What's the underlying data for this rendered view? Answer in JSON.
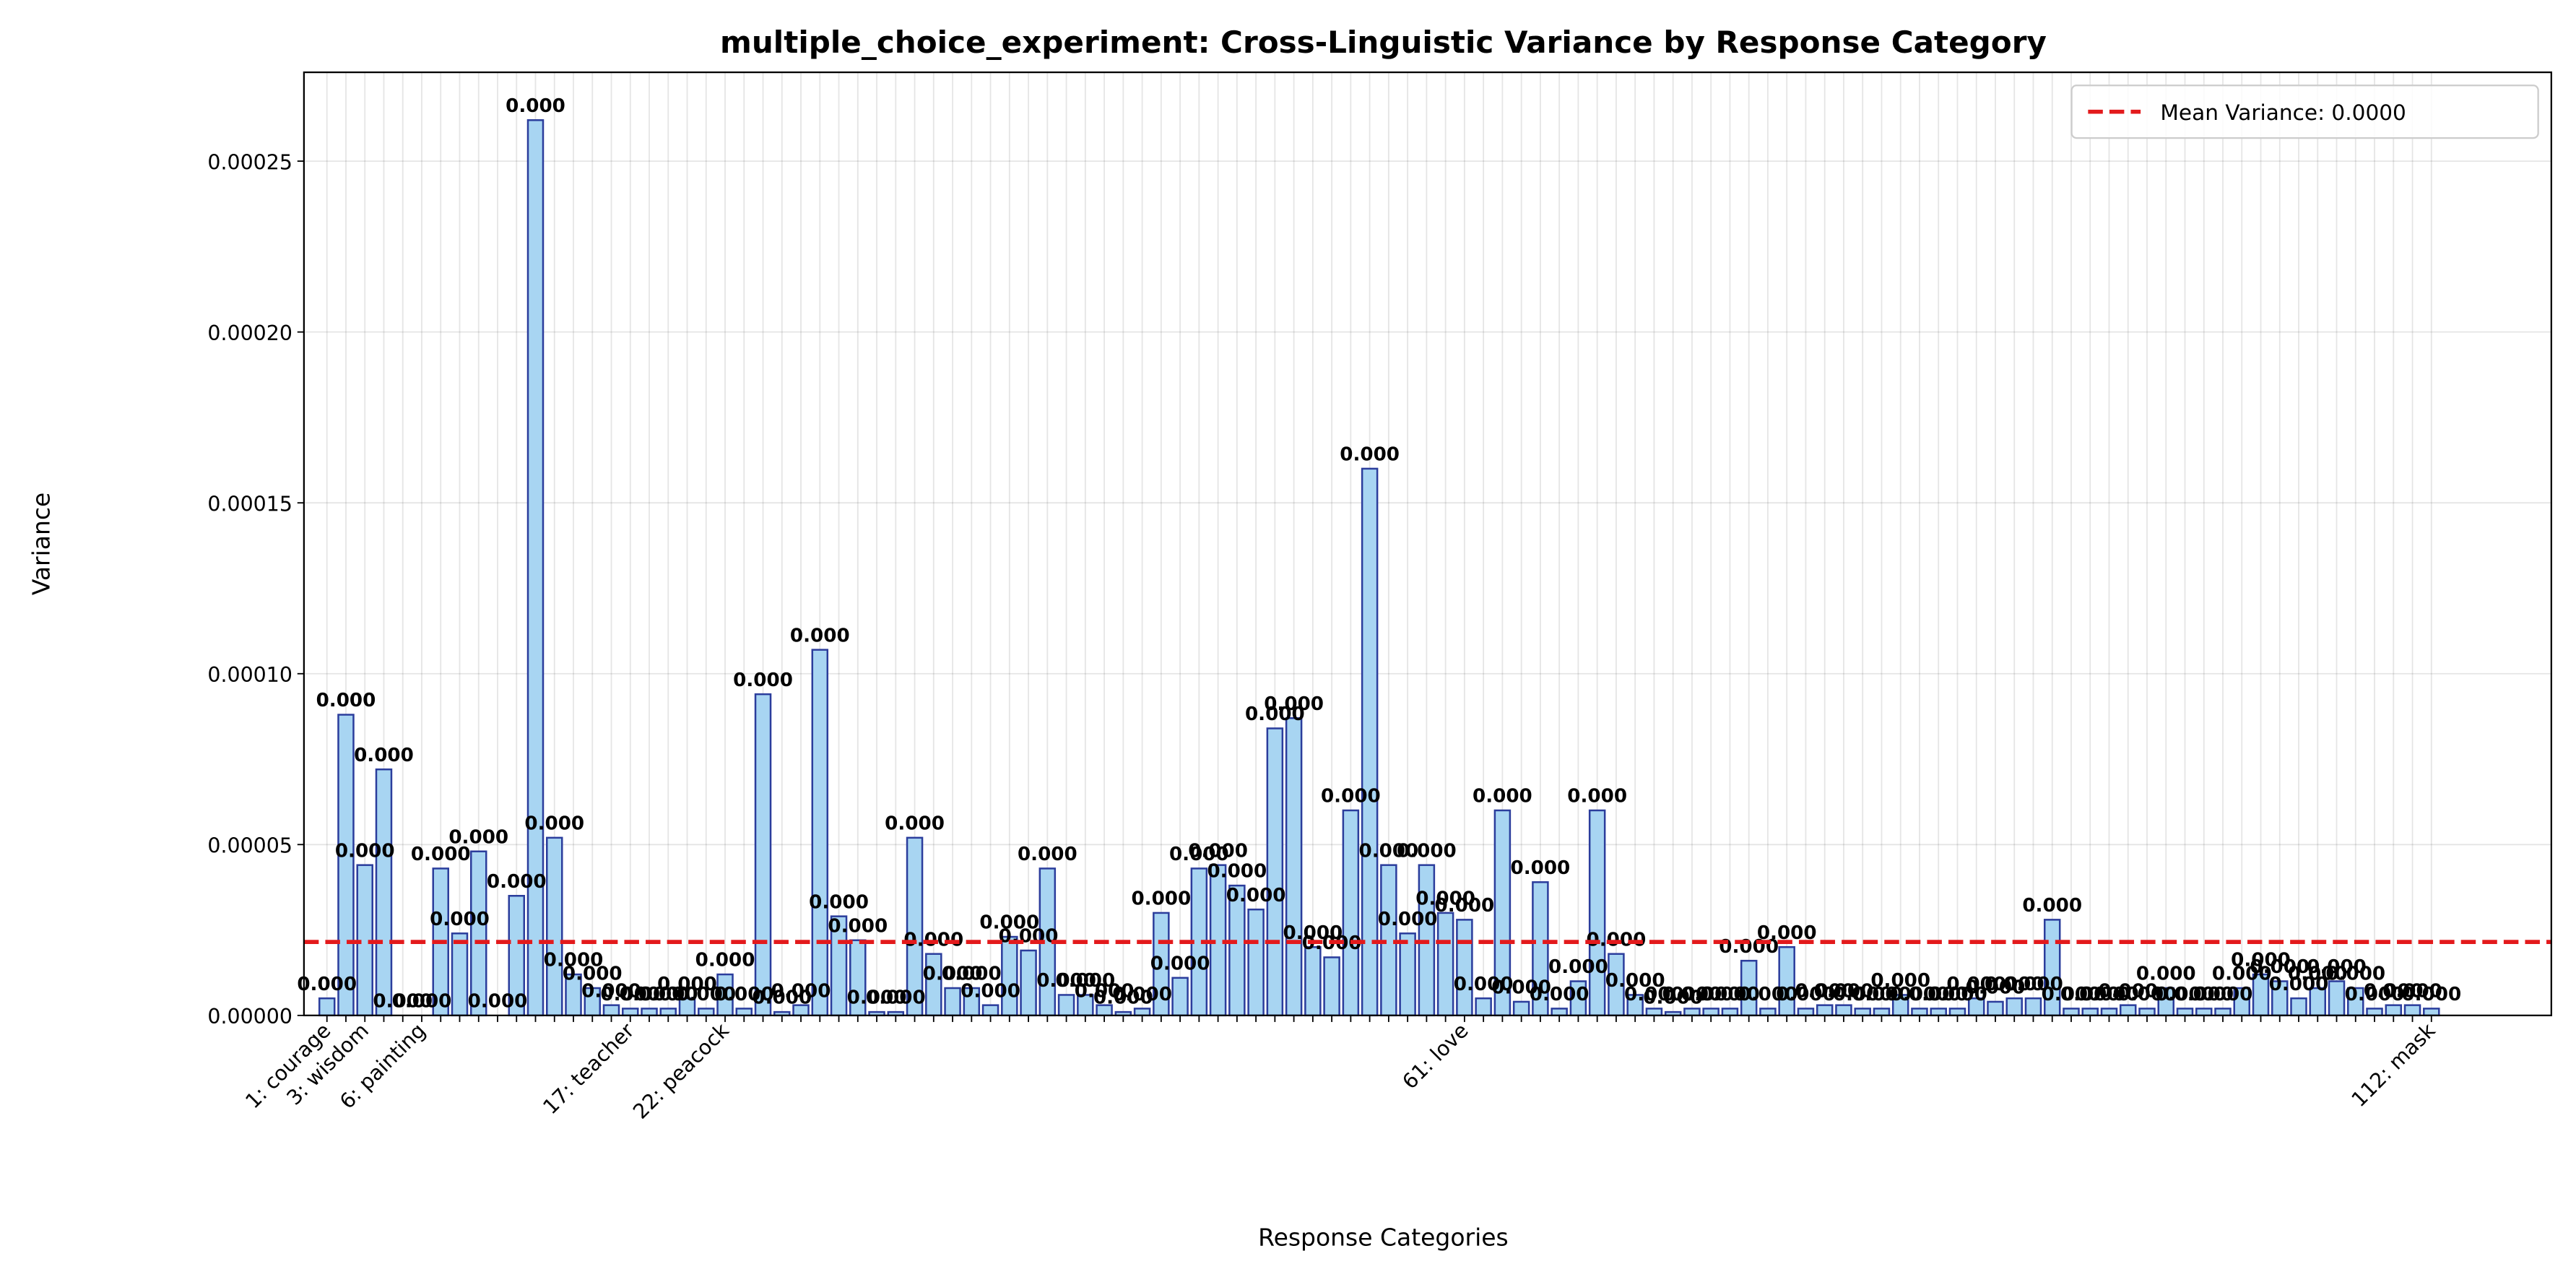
{
  "chart_data": {
    "type": "bar",
    "title": "multiple_choice_experiment: Cross-Linguistic Variance by Response Category",
    "xlabel": "Response Categories",
    "ylabel": "Variance",
    "color": "#a8d5f2",
    "edgecolor": "#2b3d9c",
    "grid": true,
    "legend": "upper right",
    "mean_line": {
      "value": 2.15e-05,
      "label": "Mean Variance: 0.0000",
      "color": "#e31a1c"
    },
    "ylim": [
      0,
      0.000276
    ],
    "yticks": [
      {
        "value": 0,
        "label": "0.00000"
      },
      {
        "value": 5e-05,
        "label": "0.00005"
      },
      {
        "value": 0.0001,
        "label": "0.00010"
      },
      {
        "value": 0.00015,
        "label": "0.00015"
      },
      {
        "value": 0.0002,
        "label": "0.00020"
      },
      {
        "value": 0.00025,
        "label": "0.00025"
      }
    ],
    "categories": [
      "1: courage",
      null,
      "3: wisdom",
      null,
      null,
      "6: painting",
      null,
      null,
      null,
      null,
      null,
      null,
      null,
      null,
      null,
      null,
      "17: teacher",
      null,
      null,
      null,
      null,
      "22: peacock",
      null,
      null,
      null,
      null,
      null,
      null,
      null,
      null,
      null,
      null,
      null,
      null,
      null,
      null,
      null,
      null,
      null,
      null,
      null,
      null,
      null,
      null,
      null,
      null,
      null,
      null,
      null,
      null,
      null,
      null,
      null,
      null,
      null,
      null,
      null,
      null,
      null,
      null,
      "61: love",
      null,
      null,
      null,
      null,
      null,
      null,
      null,
      null,
      null,
      null,
      null,
      null,
      null,
      null,
      null,
      null,
      null,
      null,
      null,
      null,
      null,
      null,
      null,
      null,
      null,
      null,
      null,
      null,
      null,
      null,
      null,
      null,
      null,
      null,
      null,
      null,
      null,
      null,
      null,
      null,
      null,
      null,
      null,
      null,
      null,
      null,
      null,
      null,
      null,
      null,
      "112: mask"
    ],
    "values": [
      5e-06,
      8.8e-05,
      4.4e-05,
      7.2e-05,
      0,
      0,
      4.3e-05,
      2.4e-05,
      4.8e-05,
      0,
      3.5e-05,
      0.000262,
      5.2e-05,
      1.2e-05,
      8e-06,
      3e-06,
      2e-06,
      2e-06,
      2e-06,
      5e-06,
      2e-06,
      1.2e-05,
      2e-06,
      9.4e-05,
      1e-06,
      3e-06,
      0.000107,
      2.9e-05,
      2.2e-05,
      1e-06,
      1e-06,
      5.2e-05,
      1.8e-05,
      8e-06,
      8e-06,
      3e-06,
      2.3e-05,
      1.9e-05,
      4.3e-05,
      6e-06,
      6e-06,
      3e-06,
      1e-06,
      2e-06,
      3e-05,
      1.1e-05,
      4.3e-05,
      4.4e-05,
      3.8e-05,
      3.1e-05,
      8.4e-05,
      8.7e-05,
      2e-05,
      1.7e-05,
      6e-05,
      0.00016,
      4.4e-05,
      2.4e-05,
      4.4e-05,
      3e-05,
      2.8e-05,
      5e-06,
      6e-05,
      4e-06,
      3.9e-05,
      2e-06,
      1e-05,
      6e-05,
      1.8e-05,
      6e-06,
      2e-06,
      1e-06,
      2e-06,
      2e-06,
      2e-06,
      1.6e-05,
      2e-06,
      2e-05,
      2e-06,
      3e-06,
      3e-06,
      2e-06,
      2e-06,
      6e-06,
      2e-06,
      2e-06,
      2e-06,
      5e-06,
      4e-06,
      5e-06,
      5e-06,
      2.8e-05,
      2e-06,
      2e-06,
      2e-06,
      3e-06,
      2e-06,
      8e-06,
      2e-06,
      2e-06,
      2e-06,
      8e-06,
      1.2e-05,
      1e-05,
      5e-06,
      8e-06,
      1e-05,
      8e-06,
      2e-06,
      3e-06,
      3e-06,
      2e-06
    ],
    "value_labels": [
      "0.000",
      "0.000",
      "0.000",
      "0.000",
      "0.000",
      "0.000",
      "0.000",
      "0.000",
      "0.000",
      "0.000",
      "0.000",
      "0.000",
      "0.000",
      "0.000",
      "0.000",
      "0.000",
      "0.000",
      "0.000",
      "0.000",
      "0.000",
      "0.000",
      "0.000",
      "0.000",
      "0.000",
      "0.000",
      "0.000",
      "0.000",
      "0.000",
      "0.000",
      "0.000",
      "0.000",
      "0.000",
      "0.000",
      "0.000",
      "0.000",
      "0.000",
      "0.000",
      "0.000",
      "0.000",
      "0.000",
      "0.000",
      "0.000",
      "0.000",
      "0.000",
      "0.000",
      "0.000",
      "0.000",
      "0.000",
      "0.000",
      "0.000",
      "0.000",
      "0.000",
      "0.000",
      "0.000",
      "0.000",
      "0.000",
      "0.000",
      "0.000",
      "0.000",
      "0.000",
      "0.000",
      "0.000",
      "0.000",
      "0.000",
      "0.000",
      "0.000",
      "0.000",
      "0.000",
      "0.000",
      "0.000",
      "0.000",
      "0.000",
      "0.000",
      "0.000",
      "0.000",
      "0.000",
      "0.000",
      "0.000",
      "0.000",
      "0.000",
      "0.000",
      "0.000",
      "0.000",
      "0.000",
      "0.000",
      "0.000",
      "0.000",
      "0.000",
      "0.000",
      "0.000",
      "0.000",
      "0.000",
      "0.000",
      "0.000",
      "0.000",
      "0.000",
      "0.000",
      "0.000",
      "0.000",
      "0.000",
      "0.000",
      "0.000",
      "0.000",
      "0.000",
      "0.000",
      "0.000",
      "0.000",
      "0.000",
      "0.000",
      "0.000",
      "0.000",
      "0.000"
    ]
  }
}
